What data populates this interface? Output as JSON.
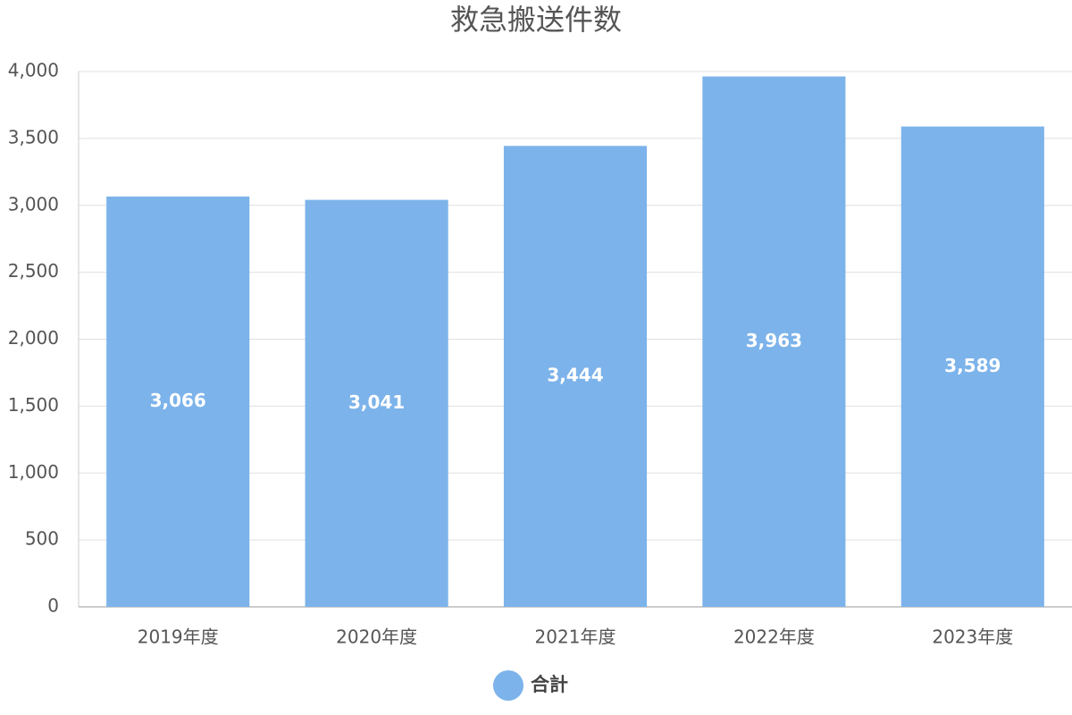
{
  "chart_data": {
    "type": "bar",
    "title": "救急搬送件数",
    "categories": [
      "2019年度",
      "2020年度",
      "2021年度",
      "2022年度",
      "2023年度"
    ],
    "series": [
      {
        "name": "合計",
        "color": "#7cb3ea",
        "values": [
          3066,
          3041,
          3444,
          3963,
          3589
        ],
        "value_labels": [
          "3,066",
          "3,041",
          "3,444",
          "3,963",
          "3,589"
        ]
      }
    ],
    "ylim": [
      0,
      4000
    ],
    "yticks": [
      0,
      500,
      {
        "value": 1000,
        "label": "1,000"
      },
      {
        "value": 1500,
        "label": "1,500"
      },
      {
        "value": 2000,
        "label": "2,000"
      },
      {
        "value": 2500,
        "label": "2,500"
      },
      {
        "value": 3000,
        "label": "3,000"
      },
      {
        "value": 3500,
        "label": "3,500"
      },
      {
        "value": 4000,
        "label": "4,000"
      }
    ],
    "grid": true,
    "legend": "bottom"
  }
}
